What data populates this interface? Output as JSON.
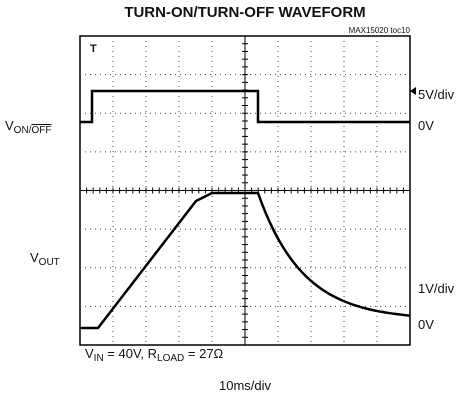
{
  "title": "TURN-ON/TURN-OFF WAVEFORM",
  "figure_id": "MAX15020 toc10",
  "left_labels": {
    "von_off": {
      "main": "V",
      "sub_on": "ON/",
      "sub_off": "OFF"
    },
    "vout": {
      "main": "V",
      "sub": "OUT"
    }
  },
  "right_labels": {
    "ch1_scale": "5V/div",
    "ch1_zero": "0V",
    "ch2_scale": "1V/div",
    "ch2_zero": "0V"
  },
  "conditions": {
    "vin_main": "V",
    "vin_sub": "IN",
    "vin_rest": " = 40V, R",
    "rload_sub": "LOAD",
    "rload_rest": " = 27Ω"
  },
  "time_scale": "10ms/div"
}
